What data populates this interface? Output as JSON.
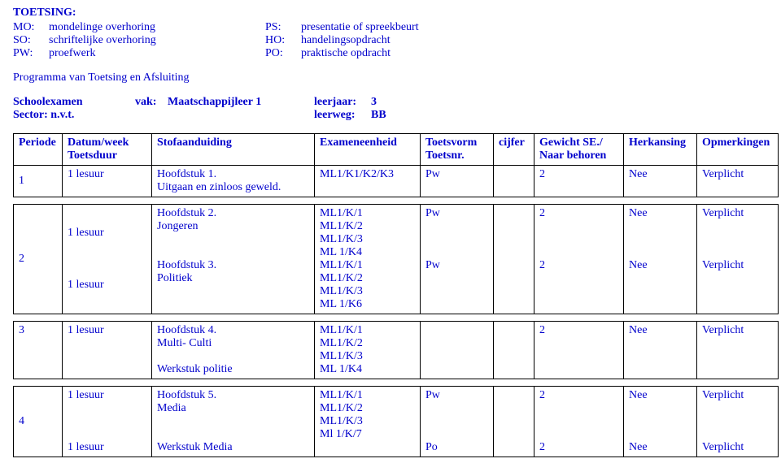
{
  "header": {
    "title": "TOETSING:",
    "left": [
      {
        "abbr": "MO:",
        "desc": "mondelinge overhoring"
      },
      {
        "abbr": "SO:",
        "desc": "schriftelijke overhoring"
      },
      {
        "abbr": "PW:",
        "desc": "proefwerk"
      }
    ],
    "right": [
      {
        "abbr": "PS:",
        "desc": "presentatie of spreekbeurt"
      },
      {
        "abbr": "HO:",
        "desc": "handelingsopdracht"
      },
      {
        "abbr": "PO:",
        "desc": "praktische opdracht"
      }
    ],
    "programLine": "Programma van Toetsing en Afsluiting",
    "meta": {
      "schoolexamen": "Schoolexamen",
      "vakLabel": "vak:",
      "vak": "Maatschappijleer 1",
      "leerjaarLabel": "leerjaar:",
      "leerjaar": "3",
      "sector": "Sector: n.v.t.",
      "leerwegLabel": "leerweg:",
      "leerweg": "BB"
    }
  },
  "columns": {
    "periode": "Periode",
    "datum": "Datum/week\nToetsduur",
    "stof": "Stofaanduiding",
    "examen": "Exameneenheid",
    "toetsvorm": "Toetsvorm\nToetsnr.",
    "cijfer": "cijfer",
    "gewicht": "Gewicht SE./\nNaar behoren",
    "herkansing": "Herkansing",
    "opm": "Opmerkingen"
  },
  "t1": {
    "periode": "1",
    "datum": "1 lesuur",
    "stof": "Hoofdstuk 1.\nUitgaan en zinloos geweld.",
    "examen": "ML1/K1/K2/K3",
    "tv": "Pw",
    "cijfer": "",
    "gewicht": "2",
    "herk": "Nee",
    "opm": "Verplicht"
  },
  "t2": {
    "periode": "2",
    "datum": "1 lesuur\n\n\n\n1 lesuur",
    "stof": "Hoofdstuk 2.\nJongeren\n\n\nHoofdstuk 3.\nPolitiek",
    "examen": "ML1/K/1\nML1/K/2\nML1/K/3\nML 1/K4\nML1/K/1\nML1/K/2\nML1/K/3\nML 1/K6",
    "tv": "Pw\n\n\n\nPw",
    "cijfer": "",
    "gewicht": "2\n\n\n\n2",
    "herk": "Nee\n\n\n\nNee",
    "opm": "Verplicht\n\n\n\nVerplicht"
  },
  "t3": {
    "periode": "3",
    "datum": "1 lesuur",
    "stof": "Hoofdstuk 4.\nMulti- Culti\n\nWerkstuk politie",
    "examen": "ML1/K/1\nML1/K/2\nML1/K/3\nML 1/K4",
    "tv": "",
    "cijfer": "",
    "gewicht": "2",
    "herk": "Nee",
    "opm": "Verplicht"
  },
  "t4": {
    "periode": "4",
    "datum": "1 lesuur\n\n\n\n1 lesuur",
    "stof": "Hoofdstuk 5.\nMedia\n\n\nWerkstuk Media",
    "examen": "ML1/K/1\nML1/K/2\nML1/K/3\nMl 1/K/7",
    "tv": "Pw\n\n\n\nPo",
    "cijfer": "",
    "gewicht": "2\n\n\n\n2",
    "herk": "Nee\n\n\n\nNee",
    "opm": "Verplicht\n\n\n\nVerplicht"
  }
}
